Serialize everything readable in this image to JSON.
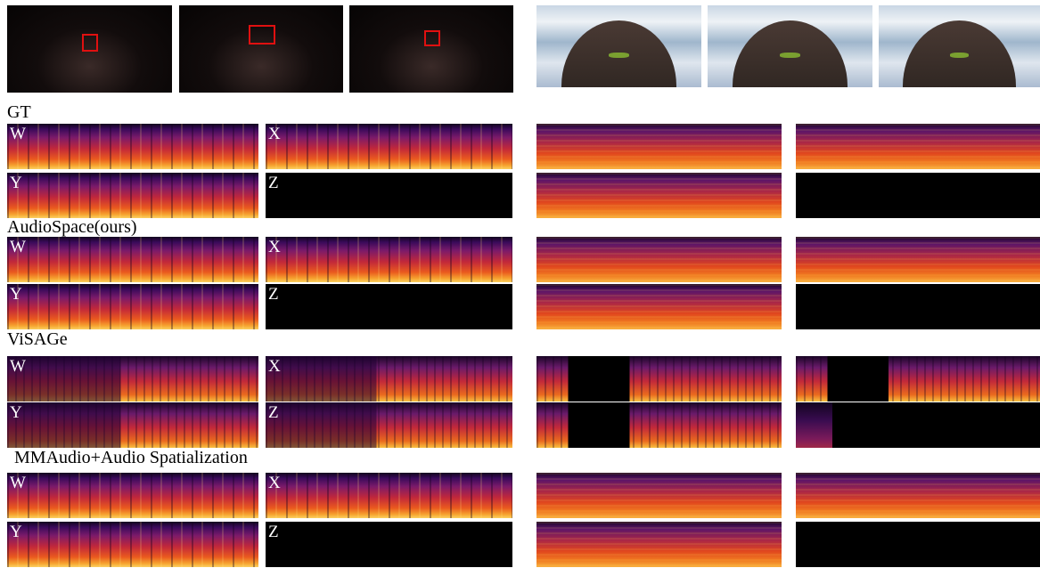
{
  "sections": [
    {
      "label": "GT",
      "channels": [
        "W",
        "X",
        "Y",
        "Z"
      ]
    },
    {
      "label": "AudioSpace(ours)",
      "channels": [
        "W",
        "X",
        "Y",
        "Z"
      ]
    },
    {
      "label": "ViSAGe",
      "channels": [
        "W",
        "X",
        "Y",
        "Z"
      ]
    },
    {
      "label": "MMAudio+Audio Spatialization",
      "channels": [
        "W",
        "X",
        "Y",
        "Z"
      ]
    }
  ]
}
